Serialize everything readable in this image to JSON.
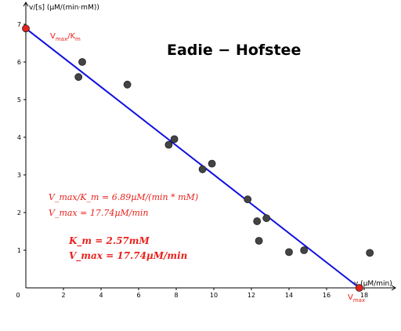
{
  "chart_data": {
    "type": "scatter",
    "title": "Eadie − Hofstee",
    "ylabel": "v/[s] (µM/(min·mM))",
    "xlabel": "v (µM/min)",
    "xlim": [
      0,
      20
    ],
    "ylim": [
      0,
      7.5
    ],
    "x_ticks": [
      "0",
      "2",
      "4",
      "6",
      "8",
      "10",
      "12",
      "14",
      "16",
      "18"
    ],
    "y_ticks": [
      "1",
      "2",
      "3",
      "4",
      "5",
      "6",
      "7"
    ],
    "grid": false,
    "points": [
      {
        "x": 2.8,
        "y": 5.6
      },
      {
        "x": 3.0,
        "y": 6.0
      },
      {
        "x": 5.4,
        "y": 5.4
      },
      {
        "x": 7.6,
        "y": 3.8
      },
      {
        "x": 7.9,
        "y": 3.95
      },
      {
        "x": 9.4,
        "y": 3.15
      },
      {
        "x": 9.9,
        "y": 3.3
      },
      {
        "x": 11.8,
        "y": 2.35
      },
      {
        "x": 12.3,
        "y": 1.77
      },
      {
        "x": 12.4,
        "y": 1.25
      },
      {
        "x": 12.8,
        "y": 1.85
      },
      {
        "x": 14.0,
        "y": 0.95
      },
      {
        "x": 14.8,
        "y": 1.0
      },
      {
        "x": 18.3,
        "y": 0.93
      }
    ],
    "fit_line": {
      "x0": 0,
      "y0": 6.89,
      "x1": 17.74,
      "y1": 0,
      "color": "#1010e0"
    },
    "endpoints": [
      {
        "label_main": "V",
        "label_sub": "max",
        "label_rest": "/K",
        "label_sub2": "m",
        "x": 0,
        "y": 6.89
      },
      {
        "label_main": "V",
        "label_sub": "max",
        "x": 17.74,
        "y": 0
      }
    ],
    "annotations": {
      "ratio_line": "V_max/K_m = 6.89µM/(min * mM)",
      "vmax_line": "V_max = 17.74µM/min",
      "km_bold": "K_m = 2.57mM",
      "vmax_bold": "V_max = 17.74µM/min"
    },
    "colors": {
      "line": "#1010e0",
      "points": "#444444",
      "endpoints": "#e8211b",
      "text": "#e8211b"
    }
  }
}
